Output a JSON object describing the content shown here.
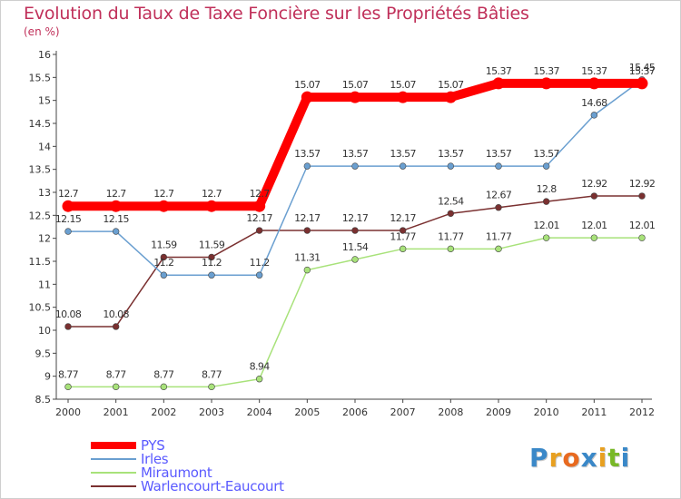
{
  "title": "Evolution du Taux de Taxe Foncière sur les Propriétés Bâties",
  "unit": "(en %)",
  "logo": {
    "letters": [
      "P",
      "r",
      "o",
      "x",
      "i",
      "t",
      "i"
    ],
    "colors": [
      "#3a88c8",
      "#e8a020",
      "#e86a20",
      "#3a88c8",
      "#e8a020",
      "#78b828",
      "#3a88c8"
    ]
  },
  "chart_data": {
    "type": "line",
    "title": "Evolution du Taux de Taxe Foncière sur les Propriétés Bâties",
    "ylabel": "(en %)",
    "xlabel": "",
    "x": [
      "2000",
      "2001",
      "2002",
      "2003",
      "2004",
      "2005",
      "2006",
      "2007",
      "2008",
      "2009",
      "2010",
      "2011",
      "2012"
    ],
    "ylim": [
      8.5,
      16
    ],
    "yticks": [
      "8.5",
      "9",
      "9.5",
      "10",
      "10.5",
      "11",
      "11.5",
      "12",
      "12.5",
      "13",
      "13.5",
      "14",
      "14.5",
      "15",
      "15.5",
      "16"
    ],
    "grid": false,
    "legend_position": "bottom-left",
    "series": [
      {
        "name": "PYS",
        "color": "#ff0000",
        "values": [
          12.7,
          12.7,
          12.7,
          12.7,
          12.7,
          15.07,
          15.07,
          15.07,
          15.07,
          15.37,
          15.37,
          15.37,
          15.37
        ],
        "labels": [
          "12.7",
          "12.7",
          "12.7",
          "12.7",
          "12.7",
          "15.07",
          "15.07",
          "15.07",
          "15.07",
          "15.37",
          "15.37",
          "15.37",
          "15.37"
        ]
      },
      {
        "name": "Irles",
        "color": "#6a9fd0",
        "values": [
          12.15,
          12.15,
          11.2,
          11.2,
          11.2,
          13.57,
          13.57,
          13.57,
          13.57,
          13.57,
          13.57,
          14.68,
          15.45
        ],
        "labels": [
          "12.15",
          "12.15",
          "11.2",
          "11.2",
          "11.2",
          "13.57",
          "13.57",
          "13.57",
          "13.57",
          "13.57",
          "13.57",
          "14.68",
          "15.45"
        ]
      },
      {
        "name": "Miraumont",
        "color": "#a8e27a",
        "values": [
          8.77,
          8.77,
          8.77,
          8.77,
          8.94,
          11.31,
          11.54,
          11.77,
          11.77,
          11.77,
          12.01,
          12.01,
          12.01
        ],
        "labels": [
          "8.77",
          "8.77",
          "8.77",
          "8.77",
          "8.94",
          "11.31",
          "11.54",
          "11.77",
          "11.77",
          "11.77",
          "12.01",
          "12.01",
          "12.01"
        ]
      },
      {
        "name": "Warlencourt-Eaucourt",
        "color": "#7a3030",
        "values": [
          10.08,
          10.08,
          11.59,
          11.59,
          12.17,
          12.17,
          12.17,
          12.17,
          12.54,
          12.67,
          12.8,
          12.92,
          12.92
        ],
        "labels": [
          "10.08",
          "10.08",
          "11.59",
          "11.59",
          "12.17",
          "12.17",
          "12.17",
          "12.17",
          "12.54",
          "12.67",
          "12.8",
          "12.92",
          "12.92"
        ]
      }
    ]
  }
}
